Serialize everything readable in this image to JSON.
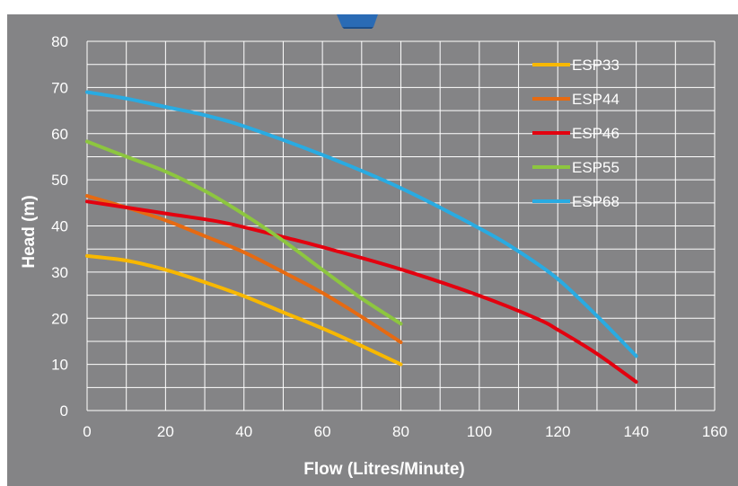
{
  "chart_data": {
    "type": "line",
    "title": "",
    "xlabel": "Flow (Litres/Minute)",
    "ylabel": "Head (m)",
    "xlim": [
      0,
      160
    ],
    "ylim": [
      0,
      80
    ],
    "x_ticks": [
      0,
      20,
      40,
      60,
      80,
      100,
      120,
      140,
      160
    ],
    "y_ticks": [
      0,
      10,
      20,
      30,
      40,
      50,
      60,
      70,
      80
    ],
    "grid": true,
    "legend_position": "top-right",
    "colors": {
      "background": "#848486",
      "grid": "#ffffff",
      "text": "#ffffff"
    },
    "series": [
      {
        "name": "ESP33",
        "color": "#f8b800",
        "points": [
          [
            0,
            33.5
          ],
          [
            10,
            32.5
          ],
          [
            20,
            30.5
          ],
          [
            30,
            27.8
          ],
          [
            40,
            24.8
          ],
          [
            50,
            21.3
          ],
          [
            60,
            17.8
          ],
          [
            70,
            14.0
          ],
          [
            80,
            10.0
          ]
        ]
      },
      {
        "name": "ESP44",
        "color": "#e66a12",
        "points": [
          [
            0,
            46.5
          ],
          [
            10,
            44.0
          ],
          [
            20,
            41.2
          ],
          [
            30,
            37.8
          ],
          [
            40,
            34.3
          ],
          [
            50,
            30.0
          ],
          [
            60,
            25.5
          ],
          [
            70,
            20.3
          ],
          [
            80,
            14.8
          ]
        ]
      },
      {
        "name": "ESP46",
        "color": "#e3000f",
        "points": [
          [
            0,
            45.3
          ],
          [
            20,
            42.7
          ],
          [
            35,
            40.7
          ],
          [
            50,
            37.6
          ],
          [
            60,
            35.4
          ],
          [
            80,
            30.6
          ],
          [
            100,
            24.9
          ],
          [
            115,
            19.8
          ],
          [
            120,
            17.5
          ],
          [
            130,
            12.3
          ],
          [
            140,
            6.2
          ]
        ]
      },
      {
        "name": "ESP55",
        "color": "#8dc63f",
        "points": [
          [
            0,
            58.3
          ],
          [
            10,
            55.0
          ],
          [
            20,
            51.8
          ],
          [
            30,
            47.6
          ],
          [
            40,
            42.5
          ],
          [
            50,
            36.8
          ],
          [
            60,
            30.5
          ],
          [
            70,
            24.3
          ],
          [
            80,
            18.8
          ]
        ]
      },
      {
        "name": "ESP68",
        "color": "#29abe2",
        "points": [
          [
            0,
            69.0
          ],
          [
            10,
            67.6
          ],
          [
            20,
            65.8
          ],
          [
            30,
            64.0
          ],
          [
            40,
            61.6
          ],
          [
            60,
            55.4
          ],
          [
            80,
            48.2
          ],
          [
            100,
            39.5
          ],
          [
            110,
            34.5
          ],
          [
            120,
            28.5
          ],
          [
            130,
            20.5
          ],
          [
            140,
            11.8
          ]
        ]
      }
    ]
  }
}
